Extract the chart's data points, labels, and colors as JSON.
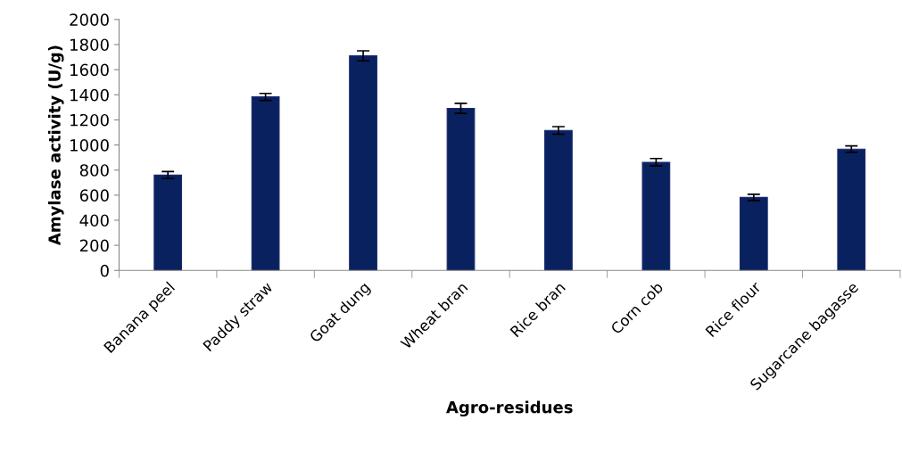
{
  "chart_data": {
    "type": "bar",
    "xlabel": "Agro-residues",
    "ylabel": "Amylase activity (U/g)",
    "categories": [
      "Banana peel",
      "Paddy straw",
      "Goat dung",
      "Wheat bran",
      "Rice bran",
      "Corn cob",
      "Rice flour",
      "Sugarcane bagasse"
    ],
    "values": [
      760,
      1383,
      1710,
      1292,
      1116,
      862,
      582,
      967
    ],
    "errors": [
      28,
      28,
      40,
      40,
      30,
      30,
      25,
      25
    ],
    "color": "#0a2160",
    "ylim": [
      0,
      2000
    ],
    "yticks": [
      0,
      200,
      400,
      600,
      800,
      1000,
      1200,
      1400,
      1600,
      1800,
      2000
    ],
    "grid": false,
    "legend": false
  }
}
